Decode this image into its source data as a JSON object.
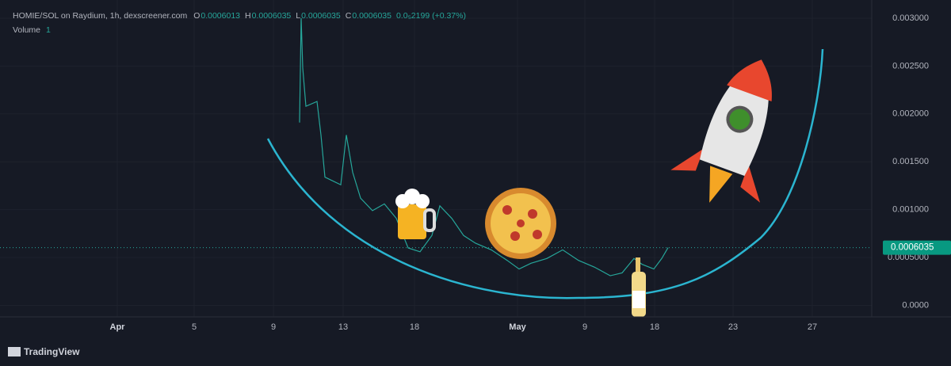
{
  "chart_data": {
    "type": "line",
    "title": "HOMIE/SOL on Raydium, 1h, dexscreener.com",
    "ohlc": [
      {
        "key": "O",
        "value": 0.0006013
      },
      {
        "key": "H",
        "value": 0.0006035
      },
      {
        "key": "L",
        "value": 0.0006035
      },
      {
        "key": "C",
        "value": 0.0006035
      }
    ],
    "change": "0.0₅2199 (+0.37%)",
    "volume_label": "Volume",
    "volume_value": 1,
    "last_price": 0.0006035,
    "brand": "TradingView",
    "color": "#26a69a",
    "x": [
      378,
      380,
      382,
      386,
      400,
      405,
      410,
      420,
      430,
      437,
      445,
      455,
      470,
      485,
      500,
      515,
      530,
      545,
      555,
      570,
      585,
      600,
      620,
      640,
      655,
      670,
      690,
      710,
      730,
      750,
      770,
      785,
      800,
      810,
      825,
      835,
      843
    ],
    "values": [
      0.00191,
      0.003,
      0.00248,
      0.00208,
      0.00213,
      0.00178,
      0.00134,
      0.0013,
      0.00126,
      0.00178,
      0.00139,
      0.00112,
      0.00099,
      0.00106,
      0.00091,
      0.0006,
      0.00056,
      0.00073,
      0.00104,
      0.00091,
      0.00073,
      0.00065,
      0.00058,
      0.00047,
      0.00038,
      0.00044,
      0.00049,
      0.00058,
      0.00047,
      0.0004,
      0.00031,
      0.00034,
      0.00049,
      0.00043,
      0.00038,
      0.00049,
      0.0006035
    ],
    "xlim": [
      0,
      1100
    ],
    "xticks": [
      {
        "value": 148,
        "label": "Apr"
      },
      {
        "value": 245,
        "label": "5"
      },
      {
        "value": 345,
        "label": "9"
      },
      {
        "value": 433,
        "label": "13"
      },
      {
        "value": 523,
        "label": "18"
      },
      {
        "value": 653,
        "label": "May"
      },
      {
        "value": 738,
        "label": "9"
      },
      {
        "value": 826,
        "label": "18"
      },
      {
        "value": 925,
        "label": "23"
      },
      {
        "value": 1025,
        "label": "27"
      }
    ],
    "ylim": [
      -0.00012,
      0.00319
    ],
    "yticks": [
      {
        "value": 0,
        "label": "0.0000"
      },
      {
        "value": 0.0005,
        "label": "0.0005000"
      },
      {
        "value": 0.001,
        "label": "0.001000"
      },
      {
        "value": 0.0015,
        "label": "0.001500"
      },
      {
        "value": 0.002,
        "label": "0.002000"
      },
      {
        "value": 0.0025,
        "label": "0.002500"
      },
      {
        "value": 0.003,
        "label": "0.003000"
      }
    ],
    "grid": true
  }
}
